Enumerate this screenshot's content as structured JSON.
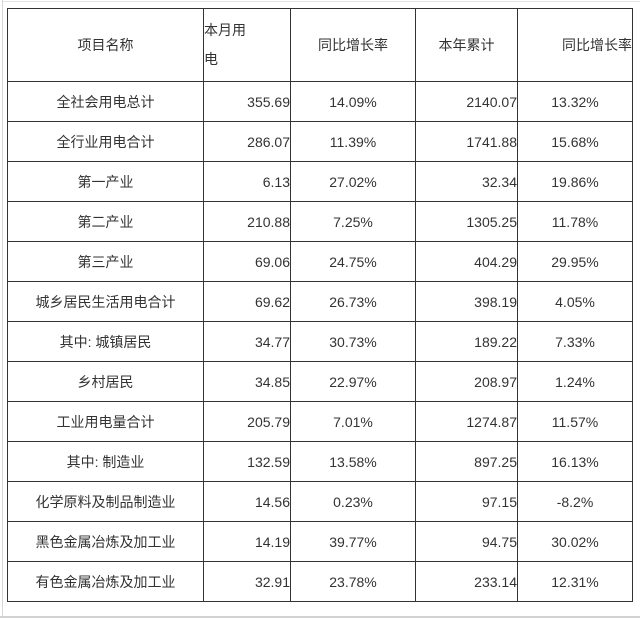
{
  "chart_data": {
    "type": "table",
    "columns": [
      "项目名称",
      "本月用\n电",
      "同比增长率",
      "本年累计",
      "同比增长率"
    ],
    "rows": [
      [
        "全社会用电总计",
        "355.69",
        "14.09%",
        "2140.07",
        "13.32%"
      ],
      [
        "全行业用电合计",
        "286.07",
        "11.39%",
        "1741.88",
        "15.68%"
      ],
      [
        "第一产业",
        "6.13",
        "27.02%",
        "32.34",
        "19.86%"
      ],
      [
        "第二产业",
        "210.88",
        "7.25%",
        "1305.25",
        "11.78%"
      ],
      [
        "第三产业",
        "69.06",
        "24.75%",
        "404.29",
        "29.95%"
      ],
      [
        "城乡居民生活用电合计",
        "69.62",
        "26.73%",
        "398.19",
        "4.05%"
      ],
      [
        "其中: 城镇居民",
        "34.77",
        "30.73%",
        "189.22",
        "7.33%"
      ],
      [
        "乡村居民",
        "34.85",
        "22.97%",
        "208.97",
        "1.24%"
      ],
      [
        "工业用电量合计",
        "205.79",
        "7.01%",
        "1274.87",
        "11.57%"
      ],
      [
        "其中: 制造业",
        "132.59",
        "13.58%",
        "897.25",
        "16.13%"
      ],
      [
        "化学原料及制品制造业",
        "14.56",
        "0.23%",
        "97.15",
        "-8.2%"
      ],
      [
        "黑色金属冶炼及加工业",
        "14.19",
        "39.77%",
        "94.75",
        "30.02%"
      ],
      [
        "有色金属冶炼及加工业",
        "32.91",
        "23.78%",
        "233.14",
        "12.31%"
      ]
    ],
    "layout": {
      "border_color": "#333333",
      "text_color": "#333333",
      "background": "#ffffff"
    }
  }
}
